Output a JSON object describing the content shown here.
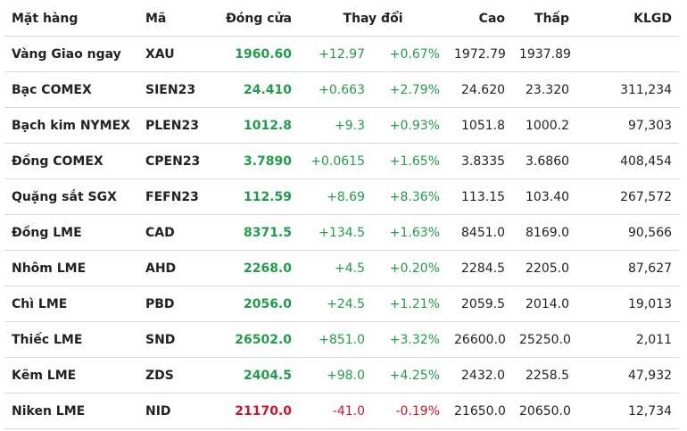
{
  "colors": {
    "up": "#1f9d48",
    "down": "#d0132a",
    "text": "#222222",
    "divider": "#d6d6d6"
  },
  "table": {
    "headers": {
      "name": "Mặt hàng",
      "code": "Mã",
      "close": "Đóng cửa",
      "change": "Thay đổi",
      "high": "Cao",
      "low": "Thấp",
      "volume": "KLGD"
    },
    "rows": [
      {
        "name": "Vàng Giao ngay",
        "code": "XAU",
        "close": "1960.60",
        "change": "+12.97",
        "change_pct": "+0.67%",
        "high": "1972.79",
        "low": "1937.89",
        "volume": "",
        "trend": "up"
      },
      {
        "name": "Bạc COMEX",
        "code": "SIEN23",
        "close": "24.410",
        "change": "+0.663",
        "change_pct": "+2.79%",
        "high": "24.620",
        "low": "23.320",
        "volume": "311,234",
        "trend": "up"
      },
      {
        "name": "Bạch kim NYMEX",
        "code": "PLEN23",
        "close": "1012.8",
        "change": "+9.3",
        "change_pct": "+0.93%",
        "high": "1051.8",
        "low": "1000.2",
        "volume": "97,303",
        "trend": "up"
      },
      {
        "name": "Đồng COMEX",
        "code": "CPEN23",
        "close": "3.7890",
        "change": "+0.0615",
        "change_pct": "+1.65%",
        "high": "3.8335",
        "low": "3.6860",
        "volume": "408,454",
        "trend": "up"
      },
      {
        "name": "Quặng sắt SGX",
        "code": "FEFN23",
        "close": "112.59",
        "change": "+8.69",
        "change_pct": "+8.36%",
        "high": "113.15",
        "low": "103.40",
        "volume": "267,572",
        "trend": "up"
      },
      {
        "name": "Đồng LME",
        "code": "CAD",
        "close": "8371.5",
        "change": "+134.5",
        "change_pct": "+1.63%",
        "high": "8451.0",
        "low": "8169.0",
        "volume": "90,566",
        "trend": "up"
      },
      {
        "name": "Nhôm LME",
        "code": "AHD",
        "close": "2268.0",
        "change": "+4.5",
        "change_pct": "+0.20%",
        "high": "2284.5",
        "low": "2205.0",
        "volume": "87,627",
        "trend": "up"
      },
      {
        "name": "Chì LME",
        "code": "PBD",
        "close": "2056.0",
        "change": "+24.5",
        "change_pct": "+1.21%",
        "high": "2059.5",
        "low": "2014.0",
        "volume": "19,013",
        "trend": "up"
      },
      {
        "name": "Thiếc LME",
        "code": "SND",
        "close": "26502.0",
        "change": "+851.0",
        "change_pct": "+3.32%",
        "high": "26600.0",
        "low": "25250.0",
        "volume": "2,011",
        "trend": "up"
      },
      {
        "name": "Kẽm LME",
        "code": "ZDS",
        "close": "2404.5",
        "change": "+98.0",
        "change_pct": "+4.25%",
        "high": "2432.0",
        "low": "2258.5",
        "volume": "47,932",
        "trend": "up"
      },
      {
        "name": "Niken LME",
        "code": "NID",
        "close": "21170.0",
        "change": "-41.0",
        "change_pct": "-0.19%",
        "high": "21650.0",
        "low": "20650.0",
        "volume": "12,734",
        "trend": "down"
      }
    ]
  }
}
